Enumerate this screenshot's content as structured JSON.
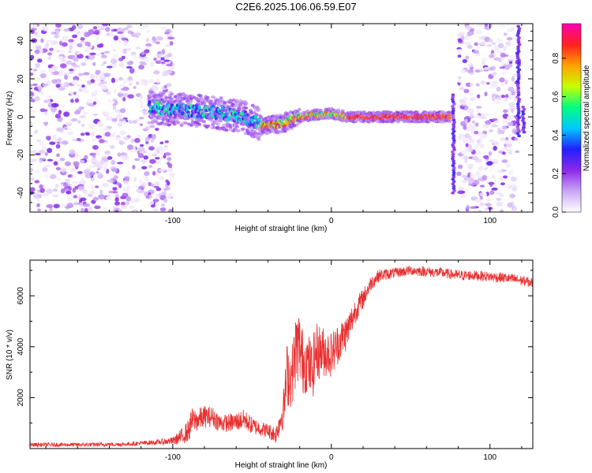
{
  "title": "C2E6.2025.106.06.59.E07",
  "chart_data": [
    {
      "type": "heatmap",
      "xlabel": "Height of straight line (km)",
      "ylabel": "Frequency (Hz)",
      "xlim": [
        -190,
        127
      ],
      "ylim": [
        -50,
        49
      ],
      "xticks": [
        "-100",
        "0",
        "100"
      ],
      "yticks": [
        "-40",
        "-20",
        "0",
        "20",
        "40"
      ],
      "colorbar": {
        "label": "Normalized spectral amplitude",
        "range": [
          0,
          0.98
        ],
        "ticks": [
          "0.0",
          "0.2",
          "0.4",
          "0.6",
          "0.8"
        ],
        "colors": [
          "#ffffff",
          "#c9a6f5",
          "#8c28e8",
          "#2020ff",
          "#00c8ff",
          "#00ff80",
          "#c8ff00",
          "#ffa000",
          "#ff2020",
          "#ff00b0"
        ]
      },
      "features": [
        {
          "region": "noise",
          "x": [
            -190,
            -100
          ],
          "y": [
            -50,
            49
          ]
        },
        {
          "region": "signal-trace",
          "x": [
            -115,
            75
          ],
          "centerline": [
            [
              -115,
              5
            ],
            [
              -80,
              3
            ],
            [
              -55,
              0
            ],
            [
              -42,
              -5
            ],
            [
              -30,
              -3
            ],
            [
              -20,
              0
            ],
            [
              -10,
              1
            ],
            [
              0,
              2
            ],
            [
              10,
              0
            ],
            [
              70,
              0
            ]
          ]
        },
        {
          "region": "noise",
          "x": [
            80,
            118
          ],
          "y": [
            -50,
            49
          ]
        }
      ]
    },
    {
      "type": "line",
      "xlabel": "Height of straight line (km)",
      "ylabel": "SNR (10 * v/v)",
      "xlim": [
        -190,
        127
      ],
      "ylim": [
        0,
        7400
      ],
      "xticks": [
        "-100",
        "0",
        "100"
      ],
      "yticks": [
        "2000",
        "4000",
        "6000"
      ],
      "series": [
        {
          "color": "#e83030",
          "x": [
            -190,
            -160,
            -130,
            -110,
            -100,
            -95,
            -90,
            -88,
            -85,
            -80,
            -75,
            -70,
            -65,
            -60,
            -55,
            -50,
            -45,
            -40,
            -35,
            -30,
            -28,
            -25,
            -22,
            -20,
            -18,
            -15,
            -12,
            -10,
            -5,
            0,
            5,
            10,
            15,
            20,
            25,
            30,
            40,
            50,
            60,
            70,
            80,
            90,
            100,
            110,
            120,
            127
          ],
          "y": [
            150,
            150,
            170,
            250,
            300,
            450,
            700,
            1100,
            1100,
            1250,
            1250,
            1000,
            1000,
            1050,
            1150,
            900,
            800,
            700,
            550,
            1600,
            2900,
            2800,
            4000,
            4000,
            3400,
            3400,
            3000,
            3800,
            3800,
            3700,
            4200,
            4600,
            5400,
            5900,
            6500,
            6800,
            6900,
            7000,
            6950,
            6900,
            6800,
            6800,
            6750,
            6700,
            6600,
            6500
          ],
          "noise_amplitude": [
            80,
            80,
            80,
            100,
            150,
            300,
            450,
            500,
            450,
            450,
            400,
            350,
            350,
            380,
            400,
            350,
            300,
            300,
            350,
            800,
            1300,
            1200,
            1500,
            1500,
            1300,
            1200,
            1200,
            1200,
            1000,
            900,
            800,
            700,
            500,
            400,
            300,
            250,
            200,
            200,
            200,
            200,
            200,
            200,
            200,
            200,
            200,
            200
          ]
        }
      ]
    }
  ]
}
